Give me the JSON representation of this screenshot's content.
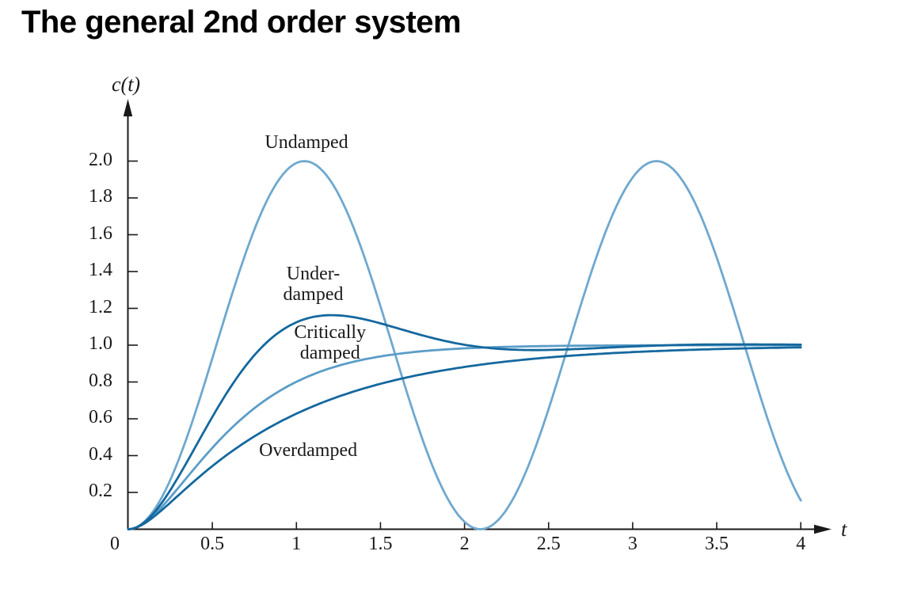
{
  "page": {
    "title": "The general 2nd order system"
  },
  "chart_data": {
    "type": "line",
    "title": "The general 2nd order system",
    "xlabel": "t",
    "ylabel": "c(t)",
    "xlim": [
      0,
      4.2
    ],
    "ylim": [
      0,
      2.35
    ],
    "grid": false,
    "legend_position": "inline-annotations",
    "axis_color": "#1a1a1a",
    "x_ticks": [
      {
        "v": 0,
        "label": "0"
      },
      {
        "v": 0.5,
        "label": "0.5"
      },
      {
        "v": 1,
        "label": "1"
      },
      {
        "v": 1.5,
        "label": "1.5"
      },
      {
        "v": 2,
        "label": "2"
      },
      {
        "v": 2.5,
        "label": "2.5"
      },
      {
        "v": 3,
        "label": "3"
      },
      {
        "v": 3.5,
        "label": "3.5"
      },
      {
        "v": 4,
        "label": "4"
      }
    ],
    "y_ticks": [
      {
        "v": 0.2,
        "label": "0.2"
      },
      {
        "v": 0.4,
        "label": "0.4"
      },
      {
        "v": 0.6,
        "label": "0.6"
      },
      {
        "v": 0.8,
        "label": "0.8"
      },
      {
        "v": 1.0,
        "label": "1.0"
      },
      {
        "v": 1.2,
        "label": "1.2"
      },
      {
        "v": 1.4,
        "label": "1.4"
      },
      {
        "v": 1.6,
        "label": "1.6"
      },
      {
        "v": 1.8,
        "label": "1.8"
      },
      {
        "v": 2.0,
        "label": "2.0"
      }
    ],
    "sample_t": [
      0,
      0.25,
      0.5,
      0.75,
      1.0,
      1.25,
      1.5,
      1.75,
      2.0,
      2.25,
      2.5,
      2.75,
      3.0,
      3.25,
      3.5,
      3.75,
      4.0
    ],
    "series": [
      {
        "name": "Undamped",
        "color": "#6FA8CE",
        "model": "undamped",
        "params": {
          "wn": 3
        },
        "samples": [
          0,
          0.268,
          0.929,
          1.628,
          1.99,
          1.821,
          1.211,
          0.488,
          0.04,
          0.103,
          0.653,
          1.374,
          1.911,
          1.946,
          1.476,
          0.748,
          0.156
        ]
      },
      {
        "name": "Critically damped",
        "color": "#5B9DC8",
        "model": "critical",
        "params": {
          "wn": 3
        },
        "samples": [
          0,
          0.173,
          0.442,
          0.657,
          0.801,
          0.888,
          0.939,
          0.967,
          0.983,
          0.991,
          0.995,
          0.998,
          0.999,
          0.999,
          1.0,
          1.0,
          1.0
        ]
      },
      {
        "name": "Overdamped",
        "color": "#14689E",
        "model": "overdamped",
        "params": {
          "A": 1.171,
          "p1": 1.146,
          "B": 0.171,
          "p2": 7.854
        },
        "samples": [
          0,
          0.145,
          0.343,
          0.505,
          0.628,
          0.721,
          0.79,
          0.842,
          0.882,
          0.911,
          0.933,
          0.95,
          0.962,
          0.972,
          0.979,
          0.984,
          0.988
        ]
      },
      {
        "name": "Underdamped",
        "color": "#14689E",
        "model": "underdamped",
        "params": {
          "wn": 3,
          "zeta": 0.5
        },
        "samples": [
          0,
          0.212,
          0.61,
          0.945,
          1.125,
          1.162,
          1.119,
          1.054,
          1.002,
          0.977,
          0.974,
          0.982,
          0.993,
          1.001,
          1.004,
          1.004,
          1.003
        ]
      }
    ],
    "annotations": [
      {
        "id": "undamped-label",
        "lines": [
          "Undamped"
        ],
        "t": 1.06,
        "c": 2.1
      },
      {
        "id": "underdamped-label",
        "lines": [
          "Under-",
          "damped"
        ],
        "t": 1.1,
        "c": 1.33
      },
      {
        "id": "critically-damped-label",
        "lines": [
          "Critically",
          "damped"
        ],
        "t": 1.2,
        "c": 1.015
      },
      {
        "id": "overdamped-label",
        "lines": [
          "Overdamped"
        ],
        "t": 1.07,
        "c": 0.43
      }
    ]
  }
}
